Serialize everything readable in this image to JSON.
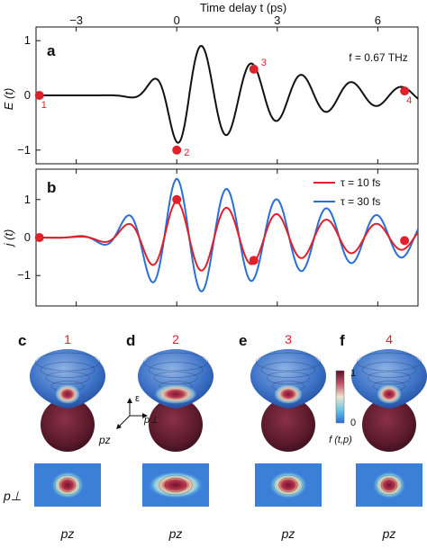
{
  "chart_data": [
    {
      "panel": "a",
      "type": "line",
      "xlabel": "Time delay t (ps)",
      "ylabel": "E (t)",
      "annotation": "f = 0.67 THz",
      "x_ticks": [
        "−3",
        "0",
        "3",
        "6"
      ],
      "y_ticks": [
        "1",
        "0",
        "−1"
      ],
      "xlim": [
        -4.2,
        7.2
      ],
      "ylim": [
        -1.25,
        1.25
      ],
      "series": [
        {
          "color": "#111111",
          "frequency_thz": 0.67,
          "envelope_center_ps": 0.4,
          "envelope": {
            "left_sigma_ps": 1.0,
            "right_decay_ps": 3.4
          }
        }
      ],
      "markers": [
        {
          "label": "1",
          "x": -4.1,
          "y": 0.0
        },
        {
          "label": "2",
          "x": 0.0,
          "y": -1.0
        },
        {
          "label": "3",
          "x": 2.3,
          "y": 0.48
        },
        {
          "label": "4",
          "x": 6.8,
          "y": 0.08
        }
      ]
    },
    {
      "panel": "b",
      "type": "line",
      "ylabel": "j (t)",
      "y_ticks": [
        "1",
        "0",
        "−1"
      ],
      "xlim": [
        -4.2,
        7.2
      ],
      "ylim": [
        -1.8,
        1.8
      ],
      "series": [
        {
          "name": "τ = 10 fs",
          "color": "#e0202a",
          "amplitude": 0.95
        },
        {
          "name": "τ = 30 fs",
          "color": "#2a6fd6",
          "amplitude": 1.55
        }
      ],
      "markers": [
        {
          "label": "1",
          "x": -4.1,
          "y": 0.0
        },
        {
          "label": "2",
          "x": 0.0,
          "y": 1.0
        },
        {
          "label": "3",
          "x": 2.3,
          "y": -0.6
        },
        {
          "label": "4",
          "x": 6.8,
          "y": -0.08
        }
      ]
    }
  ],
  "distribution_panels": [
    {
      "letter": "c",
      "number": "1",
      "blob_scale": 1.0
    },
    {
      "letter": "d",
      "number": "2",
      "blob_scale": 1.7
    },
    {
      "letter": "e",
      "number": "3",
      "blob_scale": 1.15
    },
    {
      "letter": "f",
      "number": "4",
      "blob_scale": 1.0
    }
  ],
  "colorbar": {
    "max_label": "1",
    "min_label": "0",
    "label": "f (t,p)"
  },
  "axes_glyph": {
    "energy": "ε",
    "perp": "p⊥",
    "z": "pz"
  },
  "bottom_labels": {
    "y": "p⊥",
    "x": "pz"
  }
}
